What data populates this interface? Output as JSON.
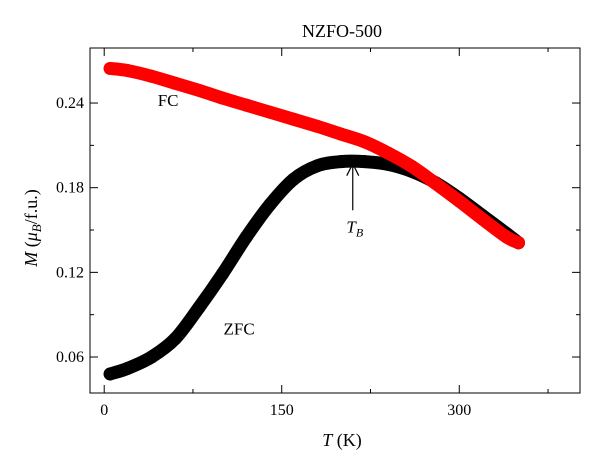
{
  "chart_data": {
    "type": "line",
    "title": "NZFO-500",
    "xlabel": {
      "symbol": "T",
      "unit": " (K)"
    },
    "ylabel": {
      "symbol": "M",
      "unit_open": " (",
      "mu": "μ",
      "sub": "B",
      "unit_close": "/f.u.)"
    },
    "xlim": [
      -12,
      402
    ],
    "ylim": [
      0.0345,
      0.279
    ],
    "x_ticks": [
      0,
      150,
      300
    ],
    "x_minor_ticks": [
      75,
      225,
      375
    ],
    "y_ticks": [
      0.06,
      0.12,
      0.18,
      0.24
    ],
    "y_tick_labels": [
      "0.06",
      "0.12",
      "0.18",
      "0.24"
    ],
    "grid": false,
    "annotation": {
      "text_main": "T",
      "text_sub": "B",
      "x": 210,
      "y_tip": 0.197,
      "y_tail": 0.164
    },
    "series": [
      {
        "name": "FC",
        "color": "#ff0000",
        "label_at": [
          54,
          0.238
        ],
        "x": [
          5,
          20,
          40,
          60,
          80,
          100,
          120,
          140,
          160,
          180,
          200,
          220,
          240,
          260,
          280,
          300,
          320,
          340,
          350
        ],
        "y": [
          0.2645,
          0.263,
          0.259,
          0.254,
          0.249,
          0.2435,
          0.2385,
          0.2335,
          0.2285,
          0.2235,
          0.218,
          0.2125,
          0.2045,
          0.195,
          0.183,
          0.1705,
          0.1575,
          0.145,
          0.141
        ]
      },
      {
        "name": "ZFC",
        "color": "#000000",
        "label_at": [
          114,
          0.076
        ],
        "x": [
          5,
          20,
          40,
          60,
          80,
          100,
          120,
          140,
          160,
          180,
          200,
          220,
          240,
          260,
          280,
          300,
          320,
          340,
          350
        ],
        "y": [
          0.048,
          0.052,
          0.06,
          0.073,
          0.095,
          0.119,
          0.145,
          0.168,
          0.186,
          0.1955,
          0.1985,
          0.1985,
          0.1965,
          0.1915,
          0.1835,
          0.1725,
          0.16,
          0.1475,
          0.141
        ]
      }
    ]
  }
}
